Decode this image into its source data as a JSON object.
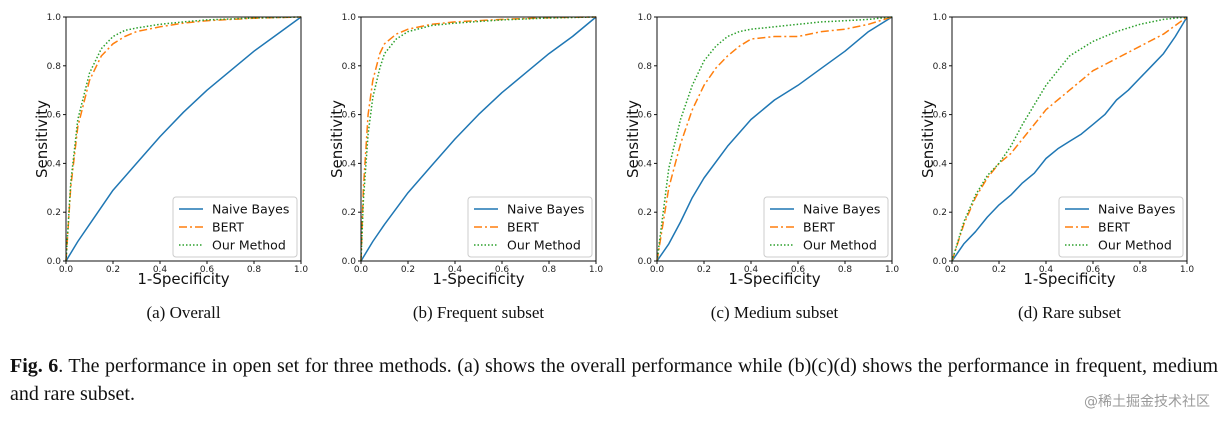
{
  "chart_data": [
    {
      "type": "line",
      "subcaption": "(a)  Overall",
      "xlabel": "1-Specificity",
      "ylabel": "Sensitivity",
      "xlim": [
        0,
        1
      ],
      "ylim": [
        0,
        1
      ],
      "xticks": [
        "0.0",
        "0.2",
        "0.4",
        "0.6",
        "0.8",
        "1.0"
      ],
      "yticks": [
        "0.0",
        "0.2",
        "0.4",
        "0.6",
        "0.8",
        "1.0"
      ],
      "legend_position": "lower-right",
      "series": [
        {
          "name": "Naive Bayes",
          "color": "#1f77b4",
          "style": "solid",
          "x": [
            0,
            0.05,
            0.1,
            0.2,
            0.3,
            0.4,
            0.5,
            0.6,
            0.7,
            0.8,
            0.9,
            1.0
          ],
          "y": [
            0,
            0.08,
            0.15,
            0.29,
            0.4,
            0.51,
            0.61,
            0.7,
            0.78,
            0.86,
            0.93,
            1.0
          ]
        },
        {
          "name": "BERT",
          "color": "#ff7f0e",
          "style": "dashdot",
          "x": [
            0,
            0.02,
            0.05,
            0.1,
            0.15,
            0.2,
            0.25,
            0.3,
            0.4,
            0.5,
            0.6,
            0.8,
            1.0
          ],
          "y": [
            0,
            0.3,
            0.55,
            0.74,
            0.84,
            0.89,
            0.92,
            0.94,
            0.96,
            0.975,
            0.985,
            0.995,
            1.0
          ]
        },
        {
          "name": "Our Method",
          "color": "#2ca02c",
          "style": "dotted",
          "x": [
            0,
            0.02,
            0.05,
            0.1,
            0.15,
            0.2,
            0.25,
            0.3,
            0.4,
            0.5,
            0.6,
            0.8,
            1.0
          ],
          "y": [
            0,
            0.32,
            0.58,
            0.77,
            0.87,
            0.92,
            0.945,
            0.955,
            0.97,
            0.98,
            0.988,
            0.996,
            1.0
          ]
        }
      ]
    },
    {
      "type": "line",
      "subcaption": "(b)  Frequent subset",
      "xlabel": "1-Specificity",
      "ylabel": "Sensitivity",
      "xlim": [
        0,
        1
      ],
      "ylim": [
        0,
        1
      ],
      "xticks": [
        "0.0",
        "0.2",
        "0.4",
        "0.6",
        "0.8",
        "1.0"
      ],
      "yticks": [
        "0.0",
        "0.2",
        "0.4",
        "0.6",
        "0.8",
        "1.0"
      ],
      "legend_position": "lower-right",
      "series": [
        {
          "name": "Naive Bayes",
          "color": "#1f77b4",
          "style": "solid",
          "x": [
            0,
            0.05,
            0.1,
            0.2,
            0.3,
            0.4,
            0.5,
            0.6,
            0.7,
            0.8,
            0.9,
            1.0
          ],
          "y": [
            0,
            0.08,
            0.15,
            0.28,
            0.39,
            0.5,
            0.6,
            0.69,
            0.77,
            0.85,
            0.92,
            1.0
          ]
        },
        {
          "name": "BERT",
          "color": "#ff7f0e",
          "style": "dashdot",
          "x": [
            0,
            0.01,
            0.03,
            0.05,
            0.08,
            0.1,
            0.15,
            0.2,
            0.3,
            0.4,
            0.6,
            0.8,
            1.0
          ],
          "y": [
            0,
            0.3,
            0.6,
            0.74,
            0.85,
            0.89,
            0.93,
            0.95,
            0.97,
            0.98,
            0.99,
            0.997,
            1.0
          ]
        },
        {
          "name": "Our Method",
          "color": "#2ca02c",
          "style": "dotted",
          "x": [
            0,
            0.01,
            0.03,
            0.05,
            0.08,
            0.1,
            0.15,
            0.2,
            0.3,
            0.4,
            0.6,
            0.8,
            1.0
          ],
          "y": [
            0,
            0.25,
            0.52,
            0.67,
            0.79,
            0.85,
            0.91,
            0.94,
            0.965,
            0.975,
            0.988,
            0.996,
            1.0
          ]
        }
      ]
    },
    {
      "type": "line",
      "subcaption": "(c)  Medium subset",
      "xlabel": "1-Specificity",
      "ylabel": "Sensitivity",
      "xlim": [
        0,
        1
      ],
      "ylim": [
        0,
        1
      ],
      "xticks": [
        "0.0",
        "0.2",
        "0.4",
        "0.6",
        "0.8",
        "1.0"
      ],
      "yticks": [
        "0.0",
        "0.2",
        "0.4",
        "0.6",
        "0.8",
        "1.0"
      ],
      "legend_position": "lower-right",
      "series": [
        {
          "name": "Naive Bayes",
          "color": "#1f77b4",
          "style": "solid",
          "x": [
            0,
            0.05,
            0.1,
            0.15,
            0.2,
            0.3,
            0.4,
            0.5,
            0.6,
            0.7,
            0.8,
            0.9,
            1.0
          ],
          "y": [
            0,
            0.07,
            0.16,
            0.26,
            0.34,
            0.47,
            0.58,
            0.66,
            0.72,
            0.79,
            0.86,
            0.94,
            1.0
          ]
        },
        {
          "name": "BERT",
          "color": "#ff7f0e",
          "style": "dashdot",
          "x": [
            0,
            0.05,
            0.1,
            0.15,
            0.2,
            0.25,
            0.3,
            0.35,
            0.4,
            0.5,
            0.6,
            0.7,
            0.8,
            0.9,
            1.0
          ],
          "y": [
            0,
            0.3,
            0.48,
            0.62,
            0.72,
            0.79,
            0.84,
            0.88,
            0.91,
            0.92,
            0.92,
            0.94,
            0.95,
            0.97,
            1.0
          ]
        },
        {
          "name": "Our Method",
          "color": "#2ca02c",
          "style": "dotted",
          "x": [
            0,
            0.05,
            0.1,
            0.15,
            0.2,
            0.25,
            0.3,
            0.35,
            0.4,
            0.5,
            0.6,
            0.7,
            0.8,
            0.9,
            1.0
          ],
          "y": [
            0,
            0.38,
            0.58,
            0.72,
            0.82,
            0.88,
            0.92,
            0.94,
            0.95,
            0.96,
            0.97,
            0.98,
            0.985,
            0.99,
            1.0
          ]
        }
      ]
    },
    {
      "type": "line",
      "subcaption": "(d)  Rare subset",
      "xlabel": "1-Specificity",
      "ylabel": "Sensitivity",
      "xlim": [
        0,
        1
      ],
      "ylim": [
        0,
        1
      ],
      "xticks": [
        "0.0",
        "0.2",
        "0.4",
        "0.6",
        "0.8",
        "1.0"
      ],
      "yticks": [
        "0.0",
        "0.2",
        "0.4",
        "0.6",
        "0.8",
        "1.0"
      ],
      "legend_position": "lower-right",
      "series": [
        {
          "name": "Naive Bayes",
          "color": "#1f77b4",
          "style": "solid",
          "x": [
            0,
            0.05,
            0.1,
            0.15,
            0.2,
            0.25,
            0.3,
            0.35,
            0.4,
            0.45,
            0.5,
            0.55,
            0.6,
            0.65,
            0.7,
            0.75,
            0.8,
            0.85,
            0.9,
            0.95,
            1.0
          ],
          "y": [
            0,
            0.07,
            0.12,
            0.18,
            0.23,
            0.27,
            0.32,
            0.36,
            0.42,
            0.46,
            0.49,
            0.52,
            0.56,
            0.6,
            0.66,
            0.7,
            0.75,
            0.8,
            0.85,
            0.92,
            1.0
          ]
        },
        {
          "name": "BERT",
          "color": "#ff7f0e",
          "style": "dashdot",
          "x": [
            0,
            0.05,
            0.1,
            0.15,
            0.2,
            0.25,
            0.3,
            0.35,
            0.4,
            0.5,
            0.6,
            0.7,
            0.8,
            0.9,
            1.0
          ],
          "y": [
            0,
            0.15,
            0.26,
            0.34,
            0.4,
            0.44,
            0.5,
            0.56,
            0.62,
            0.7,
            0.78,
            0.83,
            0.88,
            0.93,
            1.0
          ]
        },
        {
          "name": "Our Method",
          "color": "#2ca02c",
          "style": "dotted",
          "x": [
            0,
            0.05,
            0.1,
            0.15,
            0.2,
            0.25,
            0.3,
            0.35,
            0.4,
            0.5,
            0.6,
            0.7,
            0.8,
            0.9,
            1.0
          ],
          "y": [
            0,
            0.16,
            0.27,
            0.35,
            0.4,
            0.47,
            0.56,
            0.64,
            0.72,
            0.84,
            0.9,
            0.94,
            0.97,
            0.99,
            1.0
          ]
        }
      ]
    }
  ],
  "caption": {
    "label": "Fig. 6",
    "text": ".   The performance in open set for three methods. (a) shows the overall performance while (b)(c)(d) shows the performance in frequent, medium and rare subset."
  },
  "watermark": "@稀土掘金技术社区"
}
